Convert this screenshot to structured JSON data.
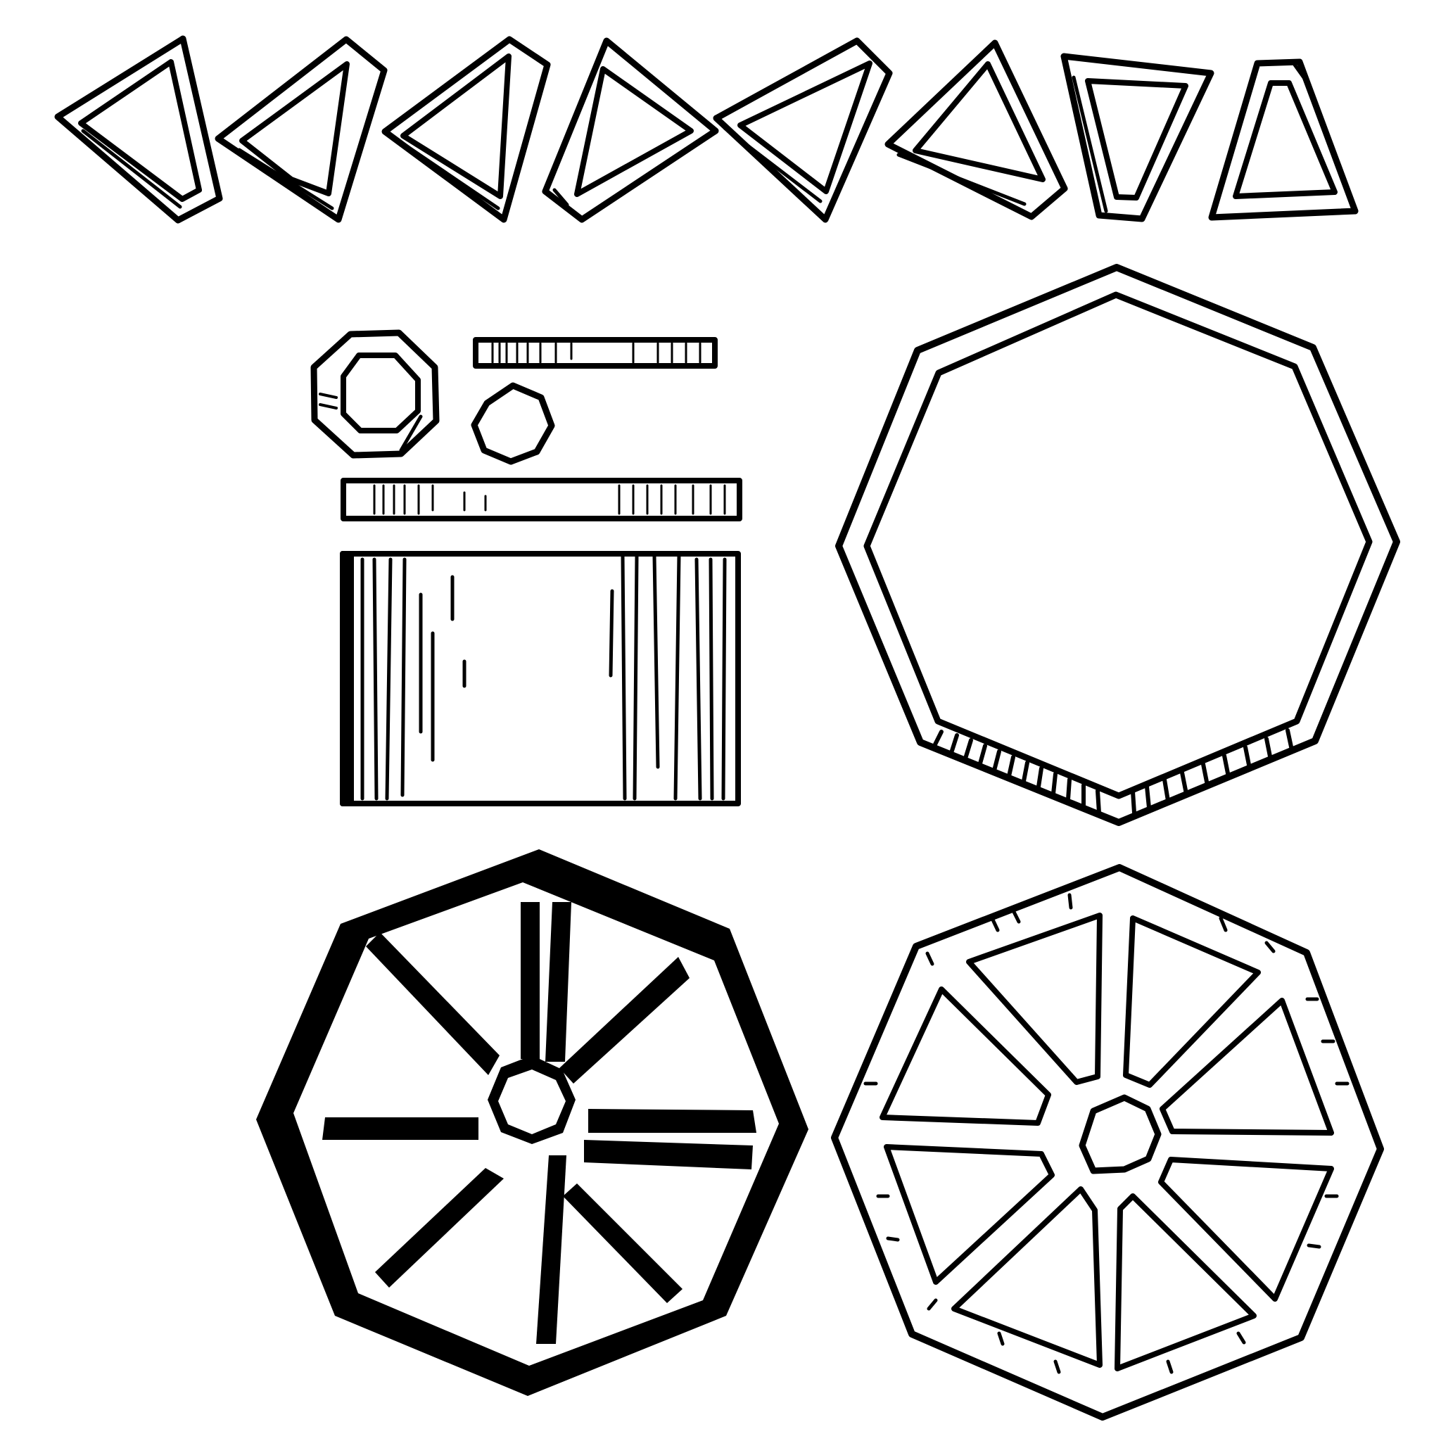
{
  "sheet": {
    "kind": "line-art sprite sheet",
    "ink_color": "#000000",
    "paper_color": "#ffffff",
    "shapes": [
      {
        "group": "triangle-tiles",
        "count": 8
      },
      {
        "group": "small-octagon-ring",
        "count": 1
      },
      {
        "group": "small-octagon",
        "count": 1
      },
      {
        "group": "wood-plank",
        "count": 2
      },
      {
        "group": "wood-panel",
        "count": 1
      },
      {
        "group": "large-octagon-frame",
        "count": 1
      },
      {
        "group": "octagon-wheel-solid",
        "count": 1
      },
      {
        "group": "octagon-wheel-outlined",
        "count": 1
      }
    ]
  }
}
